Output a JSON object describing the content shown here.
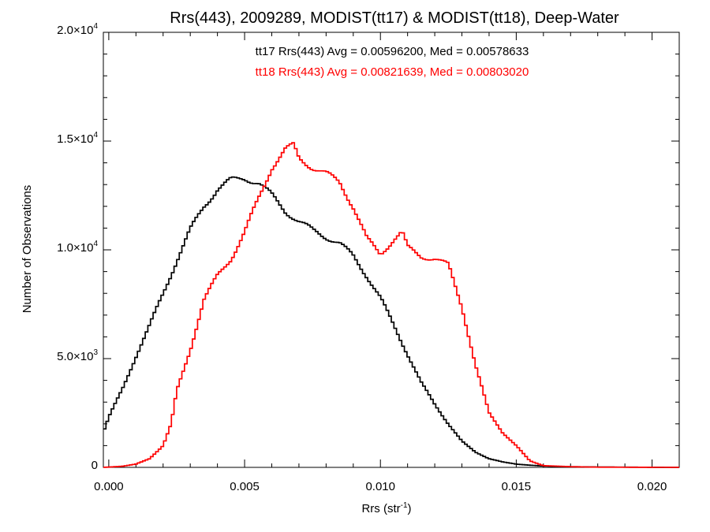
{
  "chart_data": {
    "type": "line",
    "title": "Rrs(443), 2009289, MODIST(tt17) & MODIST(tt18), Deep-Water",
    "xlabel": "Rrs (str",
    "xlabel_sup": "-1",
    "xlabel_suffix": ")",
    "ylabel": "Number of Observations",
    "xlim": [
      -0.0002,
      0.021
    ],
    "ylim": [
      0,
      20000
    ],
    "grid": false,
    "step_style": true,
    "x_ticks": [
      {
        "value": 0.0,
        "label": "0.000"
      },
      {
        "value": 0.005,
        "label": "0.005"
      },
      {
        "value": 0.01,
        "label": "0.010"
      },
      {
        "value": 0.015,
        "label": "0.015"
      },
      {
        "value": 0.02,
        "label": "0.020"
      }
    ],
    "y_ticks": [
      {
        "value": 0,
        "mant": "0",
        "exp": ""
      },
      {
        "value": 5000,
        "mant": "5.0×10",
        "exp": "3"
      },
      {
        "value": 10000,
        "mant": "1.0×10",
        "exp": "4"
      },
      {
        "value": 15000,
        "mant": "1.5×10",
        "exp": "4"
      },
      {
        "value": 20000,
        "mant": "2.0×10",
        "exp": "4"
      }
    ],
    "annotations": [
      {
        "text": "tt17 Rrs(443) Avg = 0.00596200, Med = 0.00578633",
        "color": "#000000"
      },
      {
        "text": "tt18 Rrs(443) Avg = 0.00821639, Med = 0.00803020",
        "color": "#ff0000"
      }
    ],
    "series": [
      {
        "color": "#000000",
        "points": [
          [
            -0.0002,
            1600
          ],
          [
            0.0,
            2300
          ],
          [
            0.0005,
            3600
          ],
          [
            0.001,
            5100
          ],
          [
            0.0015,
            6500
          ],
          [
            0.002,
            8000
          ],
          [
            0.0025,
            9500
          ],
          [
            0.003,
            10900
          ],
          [
            0.0035,
            12000
          ],
          [
            0.004,
            12800
          ],
          [
            0.0045,
            13200
          ],
          [
            0.005,
            13300
          ],
          [
            0.0055,
            13100
          ],
          [
            0.006,
            12500
          ],
          [
            0.0065,
            11800
          ],
          [
            0.007,
            11300
          ],
          [
            0.0075,
            10900
          ],
          [
            0.008,
            10600
          ],
          [
            0.0085,
            10300
          ],
          [
            0.009,
            9700
          ],
          [
            0.0095,
            8800
          ],
          [
            0.01,
            7800
          ],
          [
            0.0105,
            6500
          ],
          [
            0.011,
            5200
          ],
          [
            0.0115,
            3900
          ],
          [
            0.012,
            2900
          ],
          [
            0.0125,
            2000
          ],
          [
            0.013,
            1200
          ],
          [
            0.0135,
            700
          ],
          [
            0.014,
            400
          ],
          [
            0.0145,
            250
          ],
          [
            0.015,
            150
          ],
          [
            0.0155,
            100
          ],
          [
            0.016,
            60
          ],
          [
            0.017,
            30
          ],
          [
            0.018,
            15
          ],
          [
            0.02,
            5
          ],
          [
            0.021,
            0
          ]
        ]
      },
      {
        "color": "#ff0000",
        "points": [
          [
            -0.0002,
            0
          ],
          [
            0.0005,
            50
          ],
          [
            0.001,
            150
          ],
          [
            0.0015,
            400
          ],
          [
            0.002,
            1000
          ],
          [
            0.0023,
            2000
          ],
          [
            0.0025,
            3500
          ],
          [
            0.003,
            5400
          ],
          [
            0.0035,
            7700
          ],
          [
            0.004,
            8800
          ],
          [
            0.0045,
            9600
          ],
          [
            0.005,
            10800
          ],
          [
            0.0055,
            12300
          ],
          [
            0.006,
            13800
          ],
          [
            0.0065,
            14600
          ],
          [
            0.0068,
            14800
          ],
          [
            0.007,
            14200
          ],
          [
            0.0075,
            13800
          ],
          [
            0.008,
            13500
          ],
          [
            0.0085,
            13100
          ],
          [
            0.009,
            12000
          ],
          [
            0.0095,
            10500
          ],
          [
            0.01,
            9800
          ],
          [
            0.0105,
            10500
          ],
          [
            0.0108,
            10800
          ],
          [
            0.011,
            10100
          ],
          [
            0.0115,
            9700
          ],
          [
            0.012,
            9600
          ],
          [
            0.0125,
            9300
          ],
          [
            0.013,
            7400
          ],
          [
            0.0135,
            4700
          ],
          [
            0.014,
            2500
          ],
          [
            0.0145,
            1600
          ],
          [
            0.015,
            1000
          ],
          [
            0.0155,
            300
          ],
          [
            0.016,
            80
          ],
          [
            0.017,
            30
          ],
          [
            0.018,
            10
          ],
          [
            0.021,
            0
          ]
        ]
      }
    ]
  }
}
